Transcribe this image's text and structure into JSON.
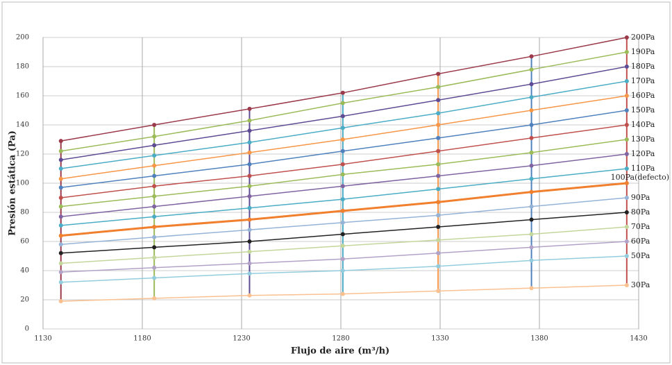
{
  "chart_data": {
    "type": "line",
    "x_label": "Flujo de aire (m³/h)",
    "y_label": "Presión estática (Pa)",
    "x": [
      1139,
      1186,
      1234,
      1281,
      1329,
      1376,
      1424
    ],
    "xlim": [
      1130,
      1430
    ],
    "xticks": [
      1130,
      1180,
      1230,
      1280,
      1330,
      1380,
      1430
    ],
    "ylim": [
      0,
      200
    ],
    "yticks": [
      0,
      20,
      40,
      60,
      80,
      100,
      120,
      140,
      160,
      180,
      200
    ],
    "grid": true,
    "series": [
      {
        "name": "200Pa",
        "color": "#9b3a4b",
        "values": [
          129,
          140,
          151,
          162,
          175,
          187,
          200
        ]
      },
      {
        "name": "190Pa",
        "color": "#9bbb59",
        "values": [
          122,
          132,
          143,
          155,
          166,
          178,
          190
        ]
      },
      {
        "name": "180Pa",
        "color": "#5e4b94",
        "values": [
          116,
          126,
          136,
          146,
          157,
          168,
          180
        ]
      },
      {
        "name": "170Pa",
        "color": "#4bacc6",
        "values": [
          110,
          119,
          128,
          138,
          148,
          159,
          170
        ]
      },
      {
        "name": "160Pa",
        "color": "#f79646",
        "values": [
          103,
          112,
          121,
          130,
          140,
          150,
          160
        ]
      },
      {
        "name": "150Pa",
        "color": "#4f81bd",
        "values": [
          97,
          105,
          113,
          122,
          131,
          140,
          150
        ]
      },
      {
        "name": "140Pa",
        "color": "#c0504d",
        "values": [
          90,
          98,
          105,
          113,
          122,
          131,
          140
        ]
      },
      {
        "name": "130Pa",
        "color": "#9bbb59",
        "values": [
          84,
          91,
          98,
          106,
          113,
          121,
          130
        ]
      },
      {
        "name": "120Pa",
        "color": "#8064a2",
        "values": [
          77,
          84,
          91,
          98,
          105,
          112,
          120
        ]
      },
      {
        "name": "110Pa",
        "color": "#4bacc6",
        "values": [
          71,
          77,
          83,
          89,
          96,
          103,
          110
        ]
      },
      {
        "name": "100Pa(defecto)",
        "color": "#f07f2e",
        "values": [
          64,
          70,
          75,
          81,
          87,
          94,
          100
        ]
      },
      {
        "name": "90Pa",
        "color": "#95b3d7",
        "values": [
          58,
          63,
          68,
          73,
          78,
          84,
          90
        ]
      },
      {
        "name": "80Pa",
        "color": "#222222",
        "values": [
          52,
          56,
          60,
          65,
          70,
          75,
          80
        ]
      },
      {
        "name": "70Pa",
        "color": "#c3d69b",
        "values": [
          45,
          49,
          53,
          57,
          61,
          65,
          70
        ]
      },
      {
        "name": "60Pa",
        "color": "#b3a2c7",
        "values": [
          39,
          42,
          45,
          48,
          52,
          56,
          60
        ]
      },
      {
        "name": "50Pa",
        "color": "#93cddd",
        "values": [
          32,
          35,
          38,
          40,
          43,
          47,
          50
        ]
      },
      {
        "name": "30Pa",
        "color": "#fac090",
        "values": [
          19,
          21,
          23,
          24,
          26,
          28,
          30
        ]
      }
    ]
  }
}
